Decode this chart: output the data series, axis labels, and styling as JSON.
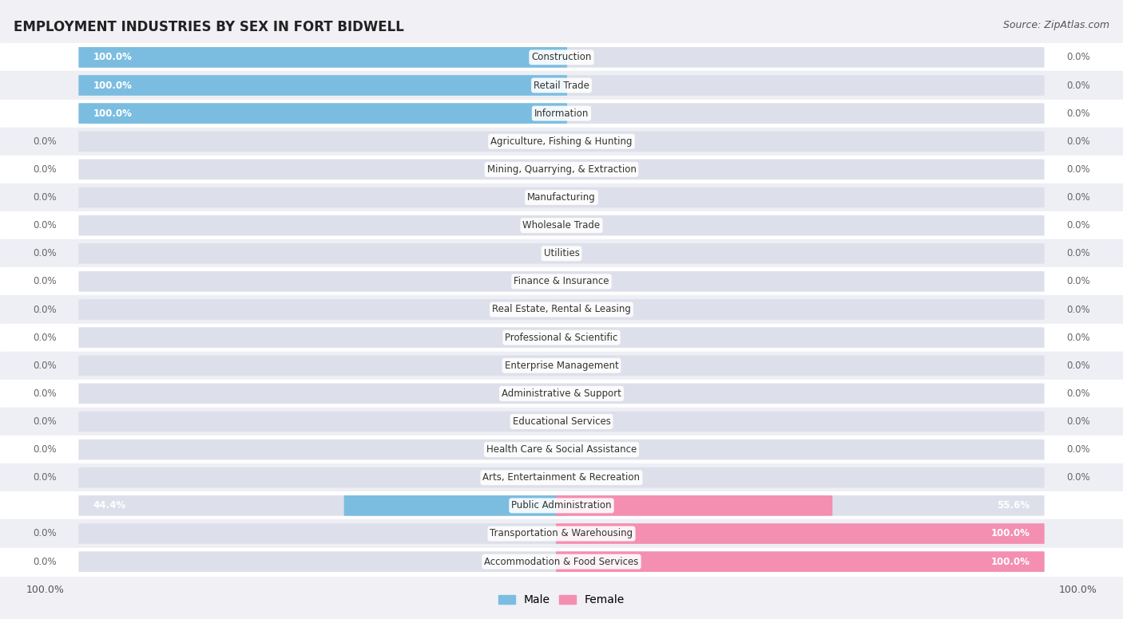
{
  "title": "EMPLOYMENT INDUSTRIES BY SEX IN FORT BIDWELL",
  "source": "Source: ZipAtlas.com",
  "industries": [
    "Construction",
    "Retail Trade",
    "Information",
    "Agriculture, Fishing & Hunting",
    "Mining, Quarrying, & Extraction",
    "Manufacturing",
    "Wholesale Trade",
    "Utilities",
    "Finance & Insurance",
    "Real Estate, Rental & Leasing",
    "Professional & Scientific",
    "Enterprise Management",
    "Administrative & Support",
    "Educational Services",
    "Health Care & Social Assistance",
    "Arts, Entertainment & Recreation",
    "Public Administration",
    "Transportation & Warehousing",
    "Accommodation & Food Services"
  ],
  "male_pct": [
    100.0,
    100.0,
    100.0,
    0.0,
    0.0,
    0.0,
    0.0,
    0.0,
    0.0,
    0.0,
    0.0,
    0.0,
    0.0,
    0.0,
    0.0,
    0.0,
    44.4,
    0.0,
    0.0
  ],
  "female_pct": [
    0.0,
    0.0,
    0.0,
    0.0,
    0.0,
    0.0,
    0.0,
    0.0,
    0.0,
    0.0,
    0.0,
    0.0,
    0.0,
    0.0,
    0.0,
    0.0,
    55.6,
    100.0,
    100.0
  ],
  "male_color": "#7bbde0",
  "female_color": "#f48fb1",
  "bg_color": "#f0f0f5",
  "bar_bg_color_light": "#dde0ea",
  "row_bg_even": "#ffffff",
  "row_bg_odd": "#eeeef5",
  "label_fontsize": 8.5,
  "title_fontsize": 12,
  "source_fontsize": 9,
  "pct_fontsize": 8.5,
  "axis_pct_fontsize": 9
}
